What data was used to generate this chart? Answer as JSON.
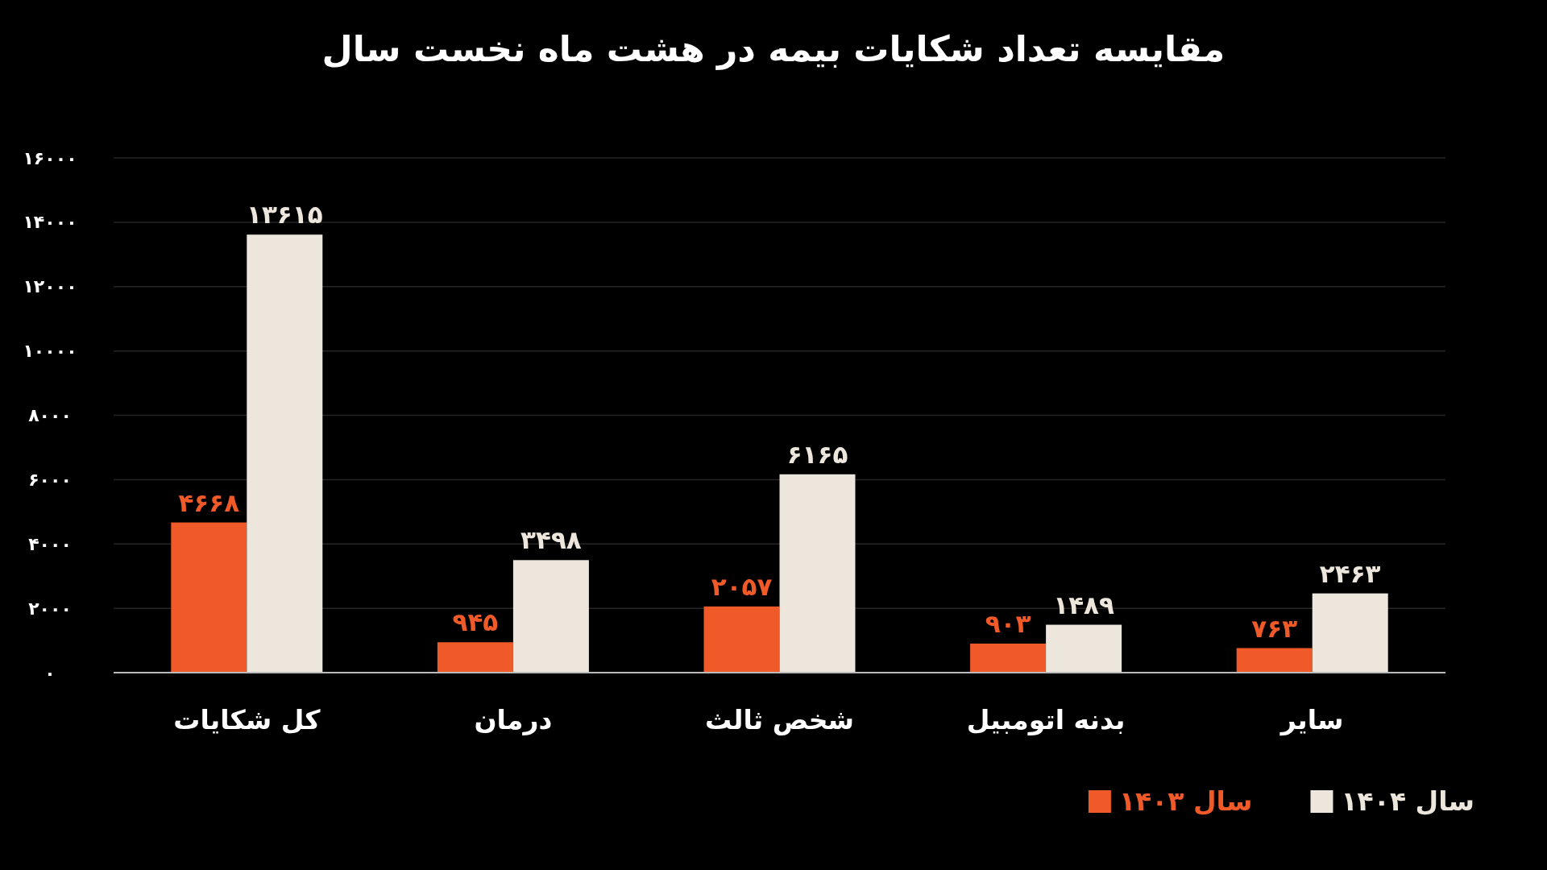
{
  "chart_data": {
    "type": "bar",
    "title": "مقایسه تعداد شکایات بیمه در هشت ماه نخست سال",
    "categories": [
      "کل شکایات",
      "درمان",
      "شخص ثالث",
      "بدنه اتومبیل",
      "سایر"
    ],
    "series": [
      {
        "name": "سال ۱۴۰۳",
        "color": "#f05a28",
        "values": [
          4668,
          945,
          2057,
          903,
          763
        ],
        "value_labels": [
          "۴۶۶۸",
          "۹۴۵",
          "۲۰۵۷",
          "۹۰۳",
          "۷۶۳"
        ]
      },
      {
        "name": "سال ۱۴۰۴",
        "color": "#ece6dc",
        "values": [
          13615,
          3498,
          6165,
          1489,
          2463
        ],
        "value_labels": [
          "۱۳۶۱۵",
          "۳۴۹۸",
          "۶۱۶۵",
          "۱۴۸۹",
          "۲۴۶۳"
        ]
      }
    ],
    "ylim": [
      0,
      16000
    ],
    "yticks": [
      {
        "value": 0,
        "label": "۰"
      },
      {
        "value": 2000,
        "label": "۲۰۰۰"
      },
      {
        "value": 4000,
        "label": "۴۰۰۰"
      },
      {
        "value": 6000,
        "label": "۶۰۰۰"
      },
      {
        "value": 8000,
        "label": "۸۰۰۰"
      },
      {
        "value": 10000,
        "label": "۱۰۰۰۰"
      },
      {
        "value": 12000,
        "label": "۱۲۰۰۰"
      },
      {
        "value": 14000,
        "label": "۱۴۰۰۰"
      },
      {
        "value": 16000,
        "label": "۱۶۰۰۰"
      }
    ],
    "grid": "y",
    "legend": "bottom right"
  }
}
